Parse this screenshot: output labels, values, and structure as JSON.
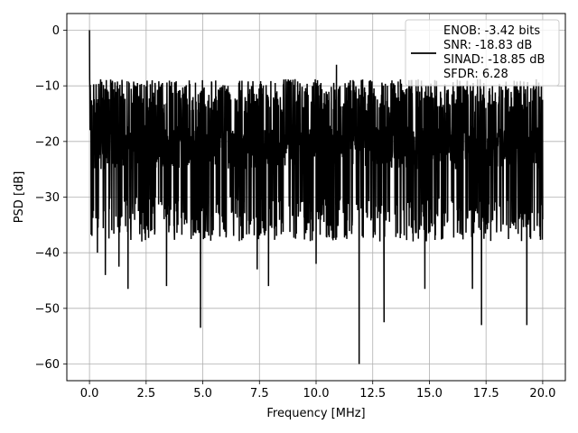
{
  "chart_data": {
    "type": "line",
    "title": "",
    "xlabel": "Frequency [MHz]",
    "ylabel": "PSD [dB]",
    "xlim": [
      -1.0,
      21.0
    ],
    "ylim": [
      -63.0,
      3.0
    ],
    "xticks": [
      0.0,
      2.5,
      5.0,
      7.5,
      10.0,
      12.5,
      15.0,
      17.5,
      20.0
    ],
    "xtick_labels": [
      "0.0",
      "2.5",
      "5.0",
      "7.5",
      "10.0",
      "12.5",
      "15.0",
      "17.5",
      "20.0"
    ],
    "yticks": [
      0,
      -10,
      -20,
      -30,
      -40,
      -50,
      -60
    ],
    "ytick_labels": [
      "0",
      "−10",
      "−20",
      "−30",
      "−40",
      "−50",
      "−60"
    ],
    "grid": true,
    "legend_position": "upper right",
    "line_color": "#000000",
    "legend_lines": [
      "ENOB: -3.42 bits",
      "SNR: -18.83 dB",
      "SINAD: -18.85 dB",
      "SFDR: 6.28"
    ],
    "series": [
      {
        "x_start": 0.0,
        "x_end": 20.0,
        "noise_median_db": -21,
        "noise_upper_db": -13,
        "noise_lower_db": -30,
        "peaks": [
          {
            "x": 0.0,
            "y": 0.0
          },
          {
            "x": 0.05,
            "y": -18.0
          },
          {
            "x": 0.3,
            "y": -16.5
          },
          {
            "x": 4.8,
            "y": -11.5
          },
          {
            "x": 6.2,
            "y": -11.5
          },
          {
            "x": 10.9,
            "y": -6.2
          },
          {
            "x": 13.9,
            "y": -11.5
          },
          {
            "x": 20.0,
            "y": -16.5
          }
        ],
        "dips": [
          {
            "x": 0.35,
            "y": -40.0
          },
          {
            "x": 0.7,
            "y": -44.0
          },
          {
            "x": 1.3,
            "y": -42.5
          },
          {
            "x": 1.7,
            "y": -46.5
          },
          {
            "x": 3.4,
            "y": -46.0
          },
          {
            "x": 4.9,
            "y": -53.5
          },
          {
            "x": 7.4,
            "y": -43.0
          },
          {
            "x": 7.9,
            "y": -46.0
          },
          {
            "x": 10.0,
            "y": -42.0
          },
          {
            "x": 11.9,
            "y": -60.0
          },
          {
            "x": 13.0,
            "y": -52.5
          },
          {
            "x": 14.8,
            "y": -46.5
          },
          {
            "x": 16.9,
            "y": -46.5
          },
          {
            "x": 17.3,
            "y": -53.0
          },
          {
            "x": 19.3,
            "y": -53.0
          },
          {
            "x": 20.0,
            "y": -34.0
          }
        ]
      }
    ]
  }
}
